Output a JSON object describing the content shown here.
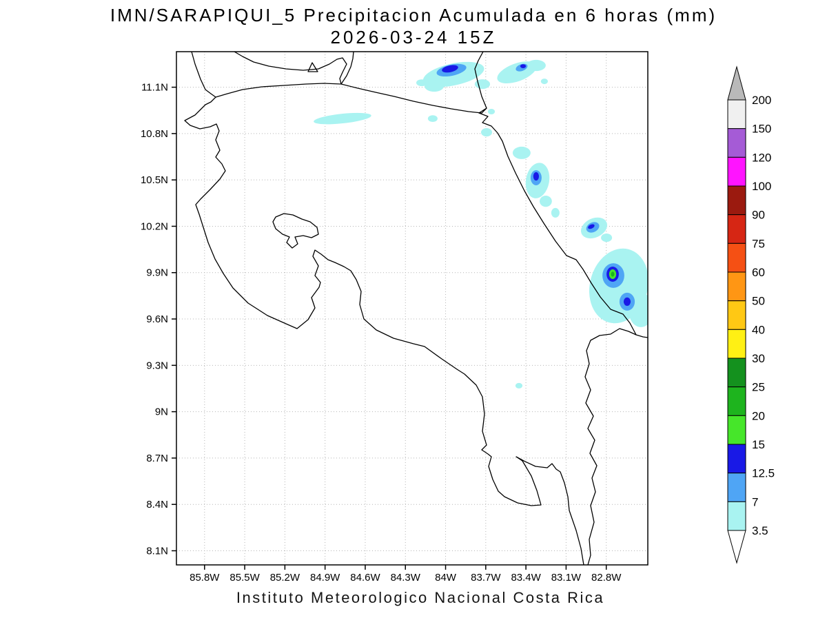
{
  "title": {
    "line1": "IMN/SARAPIQUI_5 Precipitacion Acumulada en 6 horas (mm)",
    "line2": "2026-03-24 15Z"
  },
  "footer": "Instituto Meteorologico Nacional Costa Rica",
  "axes": {
    "lat_labels": [
      "11.1N",
      "10.8N",
      "10.5N",
      "10.2N",
      "9.9N",
      "9.6N",
      "9.3N",
      "9N",
      "8.7N",
      "8.4N",
      "8.1N"
    ],
    "lon_labels": [
      "85.8W",
      "85.5W",
      "85.2W",
      "84.9W",
      "84.6W",
      "84.3W",
      "84W",
      "83.7W",
      "83.4W",
      "83.1W",
      "82.8W"
    ]
  },
  "colorbar": {
    "tick_labels_top_to_bottom": [
      "200",
      "150",
      "120",
      "100",
      "90",
      "75",
      "60",
      "50",
      "40",
      "30",
      "25",
      "20",
      "15",
      "12.5",
      "7",
      "3.5"
    ],
    "segment_colors_top_to_bottom": [
      "#f0f0f0",
      "#a55bd6",
      "#ff14ff",
      "#9b1a0f",
      "#d62614",
      "#f55014",
      "#ff9614",
      "#ffc814",
      "#fff014",
      "#14911e",
      "#1eb41e",
      "#46e62a",
      "#1919e6",
      "#4fa5f5",
      "#a9f3f1"
    ],
    "above_max_color": "#b9b9b9",
    "below_min_color": "#ffffff"
  },
  "chart_data": {
    "type": "heatmap",
    "title": "IMN/SARAPIQUI_5 Precipitacion Acumulada en 6 horas (mm) 2026-03-24 15Z",
    "units": "mm",
    "x_axis_deg_west": [
      85.8,
      82.8
    ],
    "y_axis_deg_north": [
      8.1,
      11.1
    ],
    "levels_mm": [
      3.5,
      7,
      12.5,
      15,
      20,
      25,
      30,
      40,
      50,
      60,
      75,
      90,
      100,
      120,
      150,
      200
    ],
    "level_colors": {
      "3.5": "#a9f3f1",
      "7": "#4fa5f5",
      "12.5": "#1919e6",
      "15": "#46e62a",
      "20": "#1eb41e"
    },
    "precip_cells": [
      {
        "lon": 83.94,
        "lat": 11.183,
        "rx_deg": 0.232,
        "ry_deg": 0.071,
        "rot": -12,
        "level": "3.5"
      },
      {
        "lon": 84.085,
        "lat": 11.107,
        "rx_deg": 0.072,
        "ry_deg": 0.036,
        "rot": 0,
        "level": "3.5"
      },
      {
        "lon": 83.725,
        "lat": 11.12,
        "rx_deg": 0.057,
        "ry_deg": 0.031,
        "rot": 0,
        "level": "3.5"
      },
      {
        "lon": 84.178,
        "lat": 11.129,
        "rx_deg": 0.041,
        "ry_deg": 0.022,
        "rot": 0,
        "level": "3.5"
      },
      {
        "lon": 83.956,
        "lat": 11.21,
        "rx_deg": 0.113,
        "ry_deg": 0.036,
        "rot": -12,
        "level": "7"
      },
      {
        "lon": 83.967,
        "lat": 11.219,
        "rx_deg": 0.062,
        "ry_deg": 0.022,
        "rot": -12,
        "level": "12.5"
      },
      {
        "lon": 83.468,
        "lat": 11.196,
        "rx_deg": 0.154,
        "ry_deg": 0.058,
        "rot": -20,
        "level": "3.5"
      },
      {
        "lon": 83.324,
        "lat": 11.241,
        "rx_deg": 0.072,
        "ry_deg": 0.036,
        "rot": 0,
        "level": "3.5"
      },
      {
        "lon": 83.432,
        "lat": 11.227,
        "rx_deg": 0.046,
        "ry_deg": 0.022,
        "rot": -20,
        "level": "7"
      },
      {
        "lon": 83.421,
        "lat": 11.236,
        "rx_deg": 0.021,
        "ry_deg": 0.013,
        "rot": 0,
        "level": "12.5"
      },
      {
        "lon": 83.262,
        "lat": 11.138,
        "rx_deg": 0.026,
        "ry_deg": 0.018,
        "rot": 0,
        "level": "3.5"
      },
      {
        "lon": 84.77,
        "lat": 10.897,
        "rx_deg": 0.216,
        "ry_deg": 0.031,
        "rot": -6,
        "level": "3.5"
      },
      {
        "lon": 84.096,
        "lat": 10.897,
        "rx_deg": 0.036,
        "ry_deg": 0.022,
        "rot": 0,
        "level": "3.5"
      },
      {
        "lon": 83.694,
        "lat": 10.808,
        "rx_deg": 0.041,
        "ry_deg": 0.027,
        "rot": 0,
        "level": "3.5"
      },
      {
        "lon": 83.658,
        "lat": 10.942,
        "rx_deg": 0.026,
        "ry_deg": 0.018,
        "rot": 0,
        "level": "3.5"
      },
      {
        "lon": 83.432,
        "lat": 10.675,
        "rx_deg": 0.067,
        "ry_deg": 0.04,
        "rot": 0,
        "level": "3.5"
      },
      {
        "lon": 83.313,
        "lat": 10.496,
        "rx_deg": 0.087,
        "ry_deg": 0.116,
        "rot": 10,
        "level": "3.5"
      },
      {
        "lon": 83.252,
        "lat": 10.362,
        "rx_deg": 0.046,
        "ry_deg": 0.036,
        "rot": 0,
        "level": "3.5"
      },
      {
        "lon": 83.324,
        "lat": 10.514,
        "rx_deg": 0.041,
        "ry_deg": 0.049,
        "rot": 0,
        "level": "7"
      },
      {
        "lon": 83.324,
        "lat": 10.523,
        "rx_deg": 0.021,
        "ry_deg": 0.027,
        "rot": 0,
        "level": "12.5"
      },
      {
        "lon": 83.18,
        "lat": 10.287,
        "rx_deg": 0.031,
        "ry_deg": 0.031,
        "rot": 0,
        "level": "3.5"
      },
      {
        "lon": 82.891,
        "lat": 10.189,
        "rx_deg": 0.103,
        "ry_deg": 0.062,
        "rot": -25,
        "level": "3.5"
      },
      {
        "lon": 82.798,
        "lat": 10.126,
        "rx_deg": 0.041,
        "ry_deg": 0.027,
        "rot": 0,
        "level": "3.5"
      },
      {
        "lon": 82.901,
        "lat": 10.193,
        "rx_deg": 0.051,
        "ry_deg": 0.031,
        "rot": -25,
        "level": "7"
      },
      {
        "lon": 82.912,
        "lat": 10.198,
        "rx_deg": 0.026,
        "ry_deg": 0.013,
        "rot": -25,
        "level": "12.5"
      },
      {
        "lon": 82.706,
        "lat": 9.814,
        "rx_deg": 0.216,
        "ry_deg": 0.245,
        "rot": 15,
        "level": "3.5"
      },
      {
        "lon": 82.541,
        "lat": 9.658,
        "rx_deg": 0.093,
        "ry_deg": 0.111,
        "rot": 0,
        "level": "3.5"
      },
      {
        "lon": 82.747,
        "lat": 9.881,
        "rx_deg": 0.082,
        "ry_deg": 0.08,
        "rot": 0,
        "level": "7"
      },
      {
        "lon": 82.644,
        "lat": 9.712,
        "rx_deg": 0.057,
        "ry_deg": 0.058,
        "rot": 0,
        "level": "7"
      },
      {
        "lon": 82.752,
        "lat": 9.89,
        "rx_deg": 0.046,
        "ry_deg": 0.049,
        "rot": 0,
        "level": "12.5"
      },
      {
        "lon": 82.752,
        "lat": 9.89,
        "rx_deg": 0.026,
        "ry_deg": 0.031,
        "rot": 0,
        "level": "15"
      },
      {
        "lon": 82.752,
        "lat": 9.89,
        "rx_deg": 0.013,
        "ry_deg": 0.016,
        "rot": 0,
        "level": "20"
      },
      {
        "lon": 82.644,
        "lat": 9.712,
        "rx_deg": 0.026,
        "ry_deg": 0.027,
        "rot": 0,
        "level": "12.5"
      },
      {
        "lon": 83.452,
        "lat": 9.168,
        "rx_deg": 0.026,
        "ry_deg": 0.018,
        "rot": 0,
        "level": "3.5"
      }
    ]
  }
}
